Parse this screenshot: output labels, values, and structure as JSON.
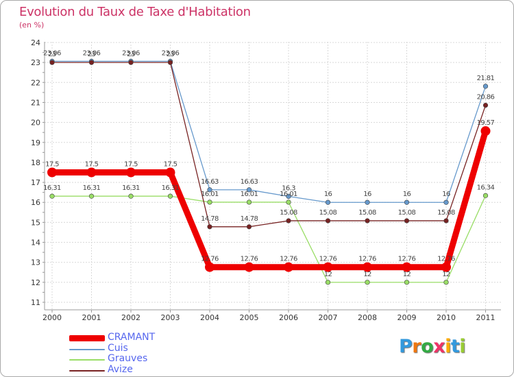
{
  "title": "Evolution du Taux de Taxe d'Habitation",
  "subtitle": "(en %)",
  "logo_text": "Proxiti",
  "chart_data": {
    "type": "line",
    "categories": [
      "2000",
      "2001",
      "2002",
      "2003",
      "2004",
      "2005",
      "2006",
      "2007",
      "2008",
      "2009",
      "2010",
      "2011"
    ],
    "yticks": [
      11,
      12,
      13,
      14,
      15,
      16,
      17,
      18,
      19,
      20,
      21,
      22,
      23,
      24
    ],
    "ylim": [
      11,
      24
    ],
    "grid": true,
    "legend_position": "bottom-left",
    "series": [
      {
        "name": "CRAMANT",
        "color": "#ee0000",
        "values": [
          17.5,
          17.5,
          17.5,
          17.5,
          12.76,
          12.76,
          12.76,
          12.76,
          12.76,
          12.76,
          12.76,
          19.57
        ],
        "labels": [
          "17.5",
          "17.5",
          "17.5",
          "17.5",
          "12.76",
          "12.76",
          "12.76",
          "12.76",
          "12.76",
          "12.76",
          "12.76",
          "19.57"
        ]
      },
      {
        "name": "Cuis",
        "color": "#6699cc",
        "values": [
          23.06,
          23.06,
          23.06,
          23.06,
          16.63,
          16.63,
          16.3,
          16,
          16,
          16,
          16,
          21.81
        ],
        "labels": [
          "23.06",
          "23.06",
          "23.06",
          "23.06",
          "16.63",
          "16.63",
          "16.3",
          "16",
          "16",
          "16",
          "16",
          "21.81"
        ]
      },
      {
        "name": "Grauves",
        "color": "#99dd66",
        "values": [
          16.31,
          16.31,
          16.31,
          16.31,
          16.01,
          16.01,
          16.01,
          12,
          12,
          12,
          12,
          16.34
        ],
        "labels": [
          "16.31",
          "16.31",
          "16.31",
          "16.31",
          "16.01",
          "16.01",
          "16.01",
          "12",
          "12",
          "12",
          "12",
          "16.34"
        ]
      },
      {
        "name": "Avize",
        "color": "#772222",
        "values": [
          23,
          23,
          23,
          23,
          14.78,
          14.78,
          15.08,
          15.08,
          15.08,
          15.08,
          15.08,
          20.86
        ],
        "labels": [
          "23",
          "23",
          "23",
          "23",
          "14.78",
          "14.78",
          "15.08",
          "15.08",
          "15.08",
          "15.08",
          "15.08",
          "20.86"
        ]
      }
    ]
  }
}
